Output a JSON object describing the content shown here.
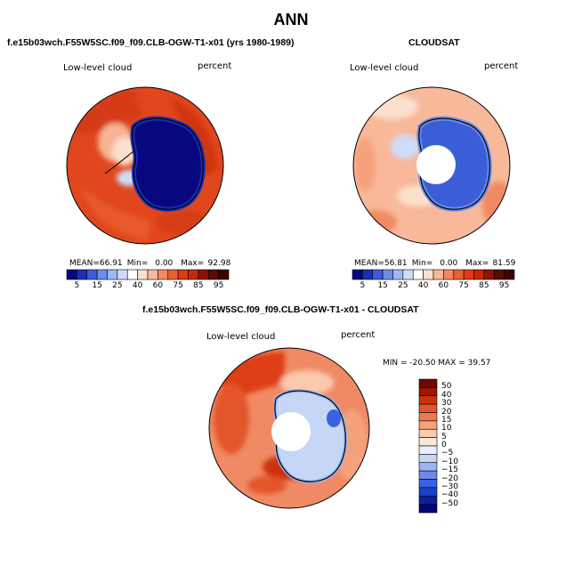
{
  "page": {
    "title": "ANN"
  },
  "panels": [
    {
      "title": "f.e15b03wch.F55W5SC.f09_f09.CLB-OGW-T1-x01 (yrs 1980-1989)",
      "left_label": "Low-level cloud",
      "right_label": "percent",
      "stats": {
        "mean_label": "MEAN=",
        "mean": "66.91",
        "min_label": "Min=",
        "min": "0.00",
        "max_label": "Max=",
        "max": "92.98"
      },
      "colorbar_labels": [
        "5",
        "15",
        "25",
        "40",
        "60",
        "75",
        "85",
        "95"
      ]
    },
    {
      "title": "CLOUDSAT",
      "left_label": "Low-level cloud",
      "right_label": "percent",
      "stats": {
        "mean_label": "MEAN=",
        "mean": "56.81",
        "min_label": "Min=",
        "min": "0.00",
        "max_label": "Max=",
        "max": "81.59"
      },
      "colorbar_labels": [
        "5",
        "15",
        "25",
        "40",
        "60",
        "75",
        "85",
        "95"
      ]
    },
    {
      "title": "f.e15b03wch.F55W5SC.f09_f09.CLB-OGW-T1-x01 - CLOUDSAT",
      "left_label": "Low-level cloud",
      "right_label": "percent",
      "stats_text": "MIN = -20.50 MAX =  39.57",
      "colorbar_labels": [
        "50",
        "40",
        "30",
        "20",
        "15",
        "10",
        "5",
        "0",
        "−5",
        "−10",
        "−15",
        "−20",
        "−30",
        "−40",
        "−50"
      ]
    }
  ],
  "colors": {
    "abs_scale": [
      "#08087e",
      "#1a2fb5",
      "#3b5ed8",
      "#6b8ee8",
      "#9fb8f0",
      "#cfdcf7",
      "#ffffff",
      "#fde0cc",
      "#f8b89a",
      "#f08a64",
      "#e85f34",
      "#de3c13",
      "#c42a06",
      "#8e1402"
    ],
    "diff_scale": [
      "#030378",
      "#0a20a0",
      "#1e40c8",
      "#3a62e0",
      "#6a8be8",
      "#9db4f0",
      "#c6d6f6",
      "#e8eefb",
      "#fde8d8",
      "#fbc9ae",
      "#f5a27c",
      "#ee7a50",
      "#e4542a",
      "#cc3208",
      "#a01400",
      "#6e0800"
    ],
    "land_outline": "#000000"
  },
  "chart_data": [
    {
      "type": "heatmap",
      "projection": "south-polar-stereographic",
      "title": "f.e15b03wch.F55W5SC.f09_f09.CLB-OGW-T1-x01 (yrs 1980-1989)",
      "variable": "Low-level cloud",
      "units": "percent",
      "mean": 66.91,
      "min": 0.0,
      "max": 92.98,
      "contour_levels": [
        5,
        10,
        15,
        20,
        25,
        30,
        40,
        50,
        60,
        70,
        75,
        80,
        85,
        90,
        95
      ]
    },
    {
      "type": "heatmap",
      "projection": "south-polar-stereographic",
      "title": "CLOUDSAT",
      "variable": "Low-level cloud",
      "units": "percent",
      "mean": 56.81,
      "min": 0.0,
      "max": 81.59,
      "contour_levels": [
        5,
        10,
        15,
        20,
        25,
        30,
        40,
        50,
        60,
        70,
        75,
        80,
        85,
        90,
        95
      ]
    },
    {
      "type": "heatmap",
      "projection": "south-polar-stereographic",
      "title": "f.e15b03wch.F55W5SC.f09_f09.CLB-OGW-T1-x01 - CLOUDSAT",
      "variable": "Low-level cloud",
      "units": "percent",
      "min": -20.5,
      "max": 39.57,
      "contour_levels": [
        -50,
        -40,
        -30,
        -20,
        -15,
        -10,
        -5,
        0,
        5,
        10,
        15,
        20,
        30,
        40,
        50
      ]
    }
  ]
}
